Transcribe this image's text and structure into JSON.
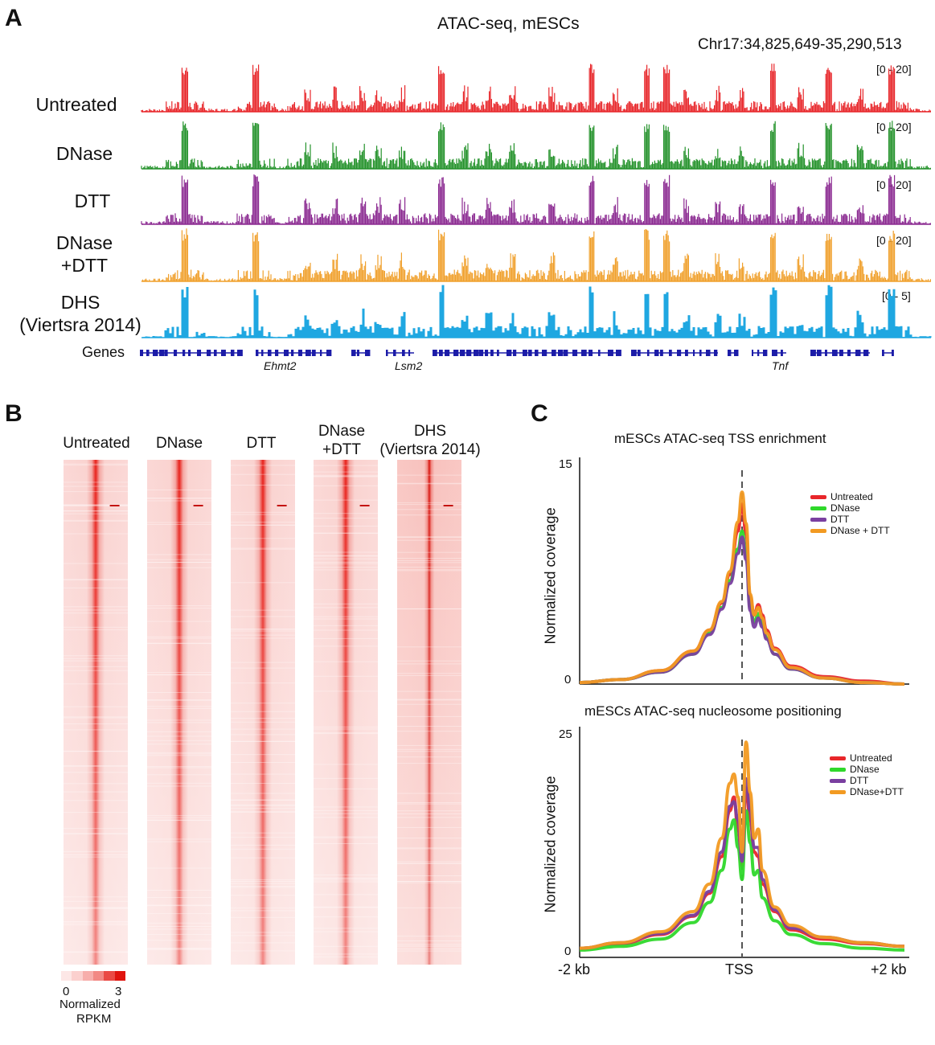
{
  "panel_a": {
    "letter": "A",
    "title": "ATAC-seq, mESCs",
    "coordinate": "Chr17:34,825,649-35,290,513",
    "tracks": [
      {
        "name": "Untreated",
        "range": "[0 - 20]",
        "color": "#e8262a"
      },
      {
        "name": "DNase",
        "range": "[0 - 20]",
        "color": "#24922b"
      },
      {
        "name": "DTT",
        "range": "[0 - 20]",
        "color": "#8b2a91"
      },
      {
        "name_line1": "DNase",
        "name_line2": "+DTT",
        "range": "[0 - 20]",
        "color": "#f0a02c"
      },
      {
        "name_line1": "DHS",
        "name_line2": "(Viertsra 2014)",
        "range": "[0 - 5]",
        "color": "#1fa7e1"
      }
    ],
    "genes_label": "Genes",
    "gene_names": [
      "Ehmt2",
      "Lsm2",
      "Tnf"
    ],
    "gene_color": "#1c1ca8"
  },
  "panel_b": {
    "letter": "B",
    "columns": [
      {
        "line1": "Untreated",
        "line2": ""
      },
      {
        "line1": "DNase",
        "line2": ""
      },
      {
        "line1": "DTT",
        "line2": ""
      },
      {
        "line1": "DNase",
        "line2": "+DTT"
      },
      {
        "line1": "DHS",
        "line2": "(Viertsra 2014)"
      }
    ],
    "scale_min": "0",
    "scale_max": "3",
    "scale_label_1": "Normalized",
    "scale_label_2": "RPKM"
  },
  "panel_c": {
    "letter": "C",
    "x_tick_left": "-2 kb",
    "x_tick_mid": "TSS",
    "x_tick_right": "+2 kb"
  },
  "chart_data": [
    {
      "type": "line",
      "title": "mESCs ATAC-seq TSS enrichment",
      "xlabel": "",
      "ylabel": "Normalized coverage",
      "ylim": [
        0,
        15
      ],
      "y_ticks": [
        "0",
        "15"
      ],
      "x": [
        -2000,
        -1500,
        -1000,
        -600,
        -400,
        -250,
        -150,
        -50,
        0,
        50,
        100,
        150,
        200,
        250,
        300,
        400,
        600,
        1000,
        1500,
        2000
      ],
      "legend_position": "top-right",
      "series": [
        {
          "name": "Untreated",
          "color": "#e8262a",
          "values": [
            0.1,
            0.3,
            0.9,
            2.2,
            3.6,
            5.4,
            7.3,
            10.2,
            12.0,
            10.0,
            5.8,
            4.6,
            5.3,
            4.6,
            3.6,
            2.4,
            1.2,
            0.5,
            0.2,
            0.0
          ]
        },
        {
          "name": "DNase",
          "color": "#2fd82b",
          "values": [
            0.1,
            0.3,
            0.8,
            2.0,
            3.4,
            5.1,
            6.9,
            9.0,
            10.2,
            8.6,
            5.2,
            4.1,
            4.7,
            4.0,
            3.1,
            2.0,
            1.0,
            0.4,
            0.1,
            0.0
          ]
        },
        {
          "name": "DTT",
          "color": "#7a3fa0",
          "values": [
            0.1,
            0.3,
            0.8,
            2.0,
            3.3,
            5.0,
            6.7,
            8.7,
            9.8,
            8.3,
            4.9,
            3.8,
            4.4,
            3.8,
            3.0,
            2.0,
            1.0,
            0.4,
            0.1,
            0.0
          ]
        },
        {
          "name": "DNase + DTT",
          "color": "#f29a22",
          "values": [
            0.1,
            0.3,
            0.9,
            2.2,
            3.6,
            5.5,
            7.5,
            10.8,
            12.8,
            10.7,
            6.0,
            4.6,
            5.1,
            4.4,
            3.4,
            2.3,
            1.1,
            0.4,
            0.1,
            0.0
          ]
        }
      ]
    },
    {
      "type": "line",
      "title": "mESCs ATAC-seq nucleosome positioning",
      "xlabel": "",
      "ylabel": "Normalized coverage",
      "ylim": [
        0,
        25
      ],
      "y_ticks": [
        "0",
        "25"
      ],
      "x": [
        -2000,
        -1500,
        -1000,
        -600,
        -400,
        -250,
        -150,
        -100,
        -50,
        0,
        50,
        100,
        150,
        200,
        250,
        400,
        600,
        1000,
        1500,
        2000
      ],
      "legend_position": "top-right",
      "series": [
        {
          "name": "Untreated",
          "color": "#e8262a",
          "values": [
            1.0,
            1.5,
            2.5,
            4.5,
            7.0,
            11.0,
            16.0,
            17.5,
            14.0,
            10.0,
            18.5,
            15.0,
            11.5,
            11.0,
            8.0,
            5.0,
            3.0,
            2.0,
            1.5,
            1.2
          ]
        },
        {
          "name": "DNase",
          "color": "#2fd82b",
          "values": [
            0.8,
            1.2,
            2.0,
            3.8,
            6.0,
            9.5,
            14.0,
            15.0,
            12.0,
            8.5,
            16.0,
            12.5,
            9.0,
            9.5,
            6.5,
            4.0,
            2.5,
            1.5,
            1.0,
            0.8
          ]
        },
        {
          "name": "DTT",
          "color": "#7a3fa0",
          "values": [
            1.0,
            1.6,
            2.6,
            4.6,
            7.2,
            11.5,
            16.5,
            17.0,
            15.0,
            10.5,
            19.5,
            16.0,
            12.0,
            12.0,
            8.5,
            5.2,
            3.2,
            2.2,
            1.6,
            1.2
          ]
        },
        {
          "name": "DNase+DTT",
          "color": "#f29a22",
          "values": [
            1.0,
            1.6,
            2.8,
            5.0,
            8.0,
            13.0,
            19.0,
            20.0,
            17.5,
            11.5,
            23.5,
            18.0,
            13.0,
            14.0,
            9.5,
            5.5,
            3.5,
            2.2,
            1.6,
            1.2
          ]
        }
      ]
    }
  ]
}
